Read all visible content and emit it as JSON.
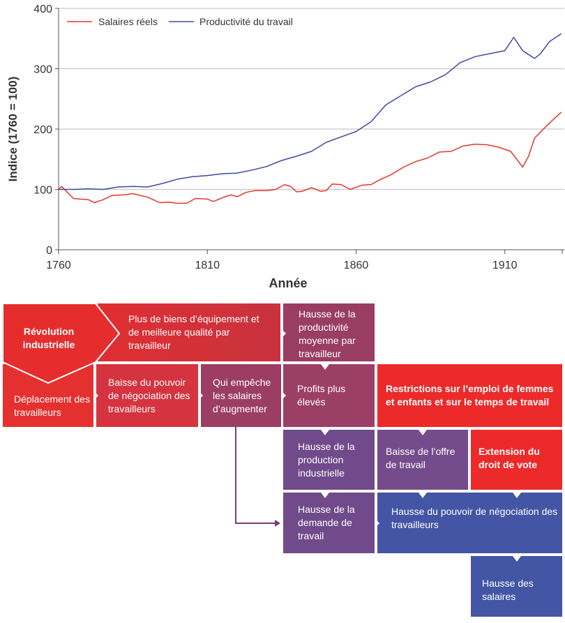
{
  "chart_data": {
    "type": "line",
    "title": "",
    "xlabel": "Année",
    "ylabel": "Indice (1760 = 100)",
    "xlim": [
      1760,
      1930
    ],
    "ylim": [
      0,
      400
    ],
    "x_ticks": [
      1760,
      1810,
      1860,
      1910
    ],
    "y_ticks": [
      0,
      100,
      200,
      300,
      400
    ],
    "grid": "horizontal",
    "legend_position": "top-left",
    "series": [
      {
        "name": "Salaires réels",
        "color": "#e8352b",
        "points": [
          [
            1760,
            100
          ],
          [
            1761,
            105
          ],
          [
            1765,
            85
          ],
          [
            1770,
            83
          ],
          [
            1772,
            78
          ],
          [
            1775,
            83
          ],
          [
            1778,
            90
          ],
          [
            1782,
            91
          ],
          [
            1785,
            93
          ],
          [
            1790,
            87
          ],
          [
            1794,
            78
          ],
          [
            1797,
            79
          ],
          [
            1800,
            77
          ],
          [
            1803,
            77
          ],
          [
            1806,
            85
          ],
          [
            1810,
            84
          ],
          [
            1812,
            80
          ],
          [
            1816,
            88
          ],
          [
            1818,
            91
          ],
          [
            1820,
            88
          ],
          [
            1823,
            95
          ],
          [
            1826,
            98
          ],
          [
            1830,
            98
          ],
          [
            1833,
            100
          ],
          [
            1836,
            108
          ],
          [
            1838,
            105
          ],
          [
            1840,
            96
          ],
          [
            1842,
            97
          ],
          [
            1845,
            103
          ],
          [
            1848,
            97
          ],
          [
            1850,
            98
          ],
          [
            1852,
            109
          ],
          [
            1855,
            108
          ],
          [
            1858,
            100
          ],
          [
            1862,
            107
          ],
          [
            1865,
            108
          ],
          [
            1868,
            116
          ],
          [
            1872,
            125
          ],
          [
            1876,
            137
          ],
          [
            1880,
            146
          ],
          [
            1884,
            152
          ],
          [
            1888,
            162
          ],
          [
            1892,
            163
          ],
          [
            1896,
            172
          ],
          [
            1900,
            175
          ],
          [
            1904,
            174
          ],
          [
            1908,
            170
          ],
          [
            1912,
            163
          ],
          [
            1914,
            150
          ],
          [
            1916,
            137
          ],
          [
            1918,
            155
          ],
          [
            1920,
            185
          ],
          [
            1922,
            195
          ],
          [
            1925,
            210
          ],
          [
            1929,
            228
          ]
        ]
      },
      {
        "name": "Productivité du travail",
        "color": "#3d4a9e",
        "points": [
          [
            1760,
            100
          ],
          [
            1765,
            100
          ],
          [
            1770,
            101
          ],
          [
            1775,
            100
          ],
          [
            1780,
            104
          ],
          [
            1785,
            105
          ],
          [
            1790,
            104
          ],
          [
            1795,
            110
          ],
          [
            1800,
            117
          ],
          [
            1805,
            121
          ],
          [
            1810,
            123
          ],
          [
            1815,
            126
          ],
          [
            1820,
            127
          ],
          [
            1825,
            132
          ],
          [
            1830,
            138
          ],
          [
            1835,
            148
          ],
          [
            1840,
            155
          ],
          [
            1845,
            163
          ],
          [
            1850,
            178
          ],
          [
            1855,
            187
          ],
          [
            1860,
            196
          ],
          [
            1865,
            212
          ],
          [
            1870,
            240
          ],
          [
            1875,
            255
          ],
          [
            1880,
            270
          ],
          [
            1885,
            278
          ],
          [
            1890,
            290
          ],
          [
            1895,
            310
          ],
          [
            1900,
            320
          ],
          [
            1905,
            325
          ],
          [
            1910,
            330
          ],
          [
            1913,
            352
          ],
          [
            1916,
            330
          ],
          [
            1920,
            317
          ],
          [
            1922,
            325
          ],
          [
            1925,
            345
          ],
          [
            1929,
            358
          ]
        ]
      }
    ]
  },
  "diagram": {
    "colors": {
      "red": "#e92d2d",
      "dark_red": "#c8333f",
      "plum": "#9a3d64",
      "violet": "#724a8b",
      "blue": "#4355a5",
      "connector": "#7a3c73"
    },
    "boxes": {
      "revolution": "Révolution industrielle",
      "capital": "Plus de biens d’équipement et de meilleure qualité par travailleur",
      "productivity": "Hausse de la productivité moyenne par travailleur",
      "displacement": "Déplacement des travailleurs",
      "bargaining_down": "Baisse du pouvoir de négociation des travailleurs",
      "prevents_wages": "Qui empêche les salaires d’augmenter",
      "profits": "Profits plus élevés",
      "restrictions": "Restrictions sur l’emploi de femmes et enfants et sur le temps de travail",
      "production": "Hausse de la production industrielle",
      "labour_supply": "Baisse de l’offre de travail",
      "vote": "Extension du droit de vote",
      "labour_demand": "Hausse de la demande de travail",
      "bargaining_up": "Hausse du pouvoir de négociation des travailleurs",
      "wages": "Hausse des salaires"
    }
  }
}
